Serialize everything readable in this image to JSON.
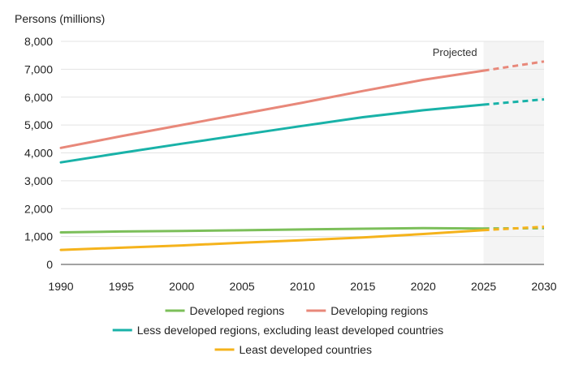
{
  "chart_data": {
    "type": "line",
    "ylabel": "Persons (millions)",
    "xlim": [
      1990,
      2030
    ],
    "ylim": [
      0,
      8000
    ],
    "x_ticks": [
      "1990",
      "1995",
      "2000",
      "2005",
      "2010",
      "2015",
      "2020",
      "2025",
      "2030"
    ],
    "y_ticks": [
      "0",
      "1,000",
      "2,000",
      "3,000",
      "4,000",
      "5,000",
      "6,000",
      "7,000",
      "8,000"
    ],
    "x_tick_values": [
      1990,
      1995,
      2000,
      2005,
      2010,
      2015,
      2020,
      2025,
      2030
    ],
    "y_tick_values": [
      0,
      1000,
      2000,
      3000,
      4000,
      5000,
      6000,
      7000,
      8000
    ],
    "grid": "horizontal",
    "projection_start": 2025,
    "projection_label": "Projected",
    "x": [
      1990,
      1995,
      2000,
      2005,
      2010,
      2015,
      2020,
      2025,
      2030
    ],
    "series": [
      {
        "name": "Developed regions",
        "color": "#7cbf5a",
        "values": [
          1150,
          1180,
          1200,
          1225,
          1255,
          1280,
          1300,
          1290,
          1300
        ]
      },
      {
        "name": "Developing regions",
        "color": "#e8887a",
        "values": [
          4180,
          4600,
          5000,
          5400,
          5800,
          6220,
          6620,
          6950,
          7280
        ]
      },
      {
        "name": "Less developed regions, excluding least developed countries",
        "color": "#19b2a8",
        "values": [
          3660,
          4000,
          4330,
          4650,
          4970,
          5280,
          5530,
          5730,
          5920
        ]
      },
      {
        "name": "Least developed countries",
        "color": "#f5b31c",
        "values": [
          520,
          600,
          680,
          780,
          870,
          970,
          1090,
          1230,
          1350
        ]
      }
    ],
    "legend_position": "bottom",
    "legend_rows": [
      [
        0,
        1
      ],
      [
        2
      ],
      [
        3
      ]
    ]
  }
}
